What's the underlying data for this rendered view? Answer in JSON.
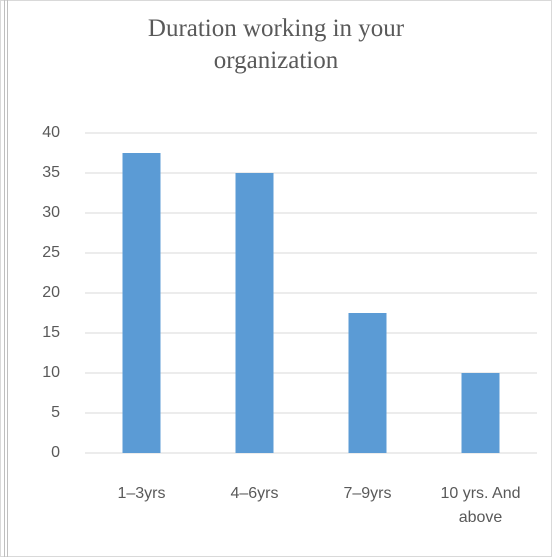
{
  "chart_data": {
    "type": "bar",
    "title": "Duration working in your organization",
    "categories": [
      "1–3yrs",
      "4–6yrs",
      "7–9yrs",
      "10 yrs. And above"
    ],
    "values": [
      37.5,
      35,
      17.5,
      10
    ],
    "color": "#5b9bd5",
    "ylim": [
      0,
      40
    ],
    "yticks": [
      0,
      5,
      10,
      15,
      20,
      25,
      30,
      35,
      40
    ],
    "grid": true
  }
}
